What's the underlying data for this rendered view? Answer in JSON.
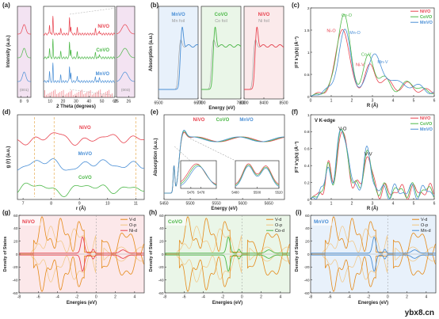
{
  "colors": {
    "ni": "#e8434f",
    "co": "#4cb848",
    "mn": "#4a8fd6",
    "dark": "#222222",
    "grey": "#888888",
    "vd": "#e58a19",
    "op": "#f2c580"
  },
  "watermark": "ybx8.cn",
  "chart_data": [
    {
      "panel": "a",
      "type": "line",
      "panel_label": "(a)",
      "xlabel": "2 Theta (degrees)",
      "ylabel": "Intensity (a.u.)",
      "series": [
        {
          "name": "NiVO",
          "color": "#e8434f",
          "peaks": [
            [
              9.6,
              0.5
            ],
            [
              12.2,
              0.9
            ],
            [
              18.2,
              0.3
            ],
            [
              25.0,
              0.8
            ],
            [
              26.0,
              0.4
            ],
            [
              31.0,
              0.3
            ],
            [
              45.0,
              0.25
            ],
            [
              48.0,
              0.2
            ]
          ]
        },
        {
          "name": "CoVO",
          "color": "#4cb848",
          "peaks": [
            [
              9.6,
              0.5
            ],
            [
              12.2,
              0.9
            ],
            [
              18.2,
              0.3
            ],
            [
              25.0,
              0.8
            ],
            [
              26.0,
              0.4
            ],
            [
              31.0,
              0.3
            ],
            [
              45.0,
              0.25
            ],
            [
              48.0,
              0.2
            ]
          ]
        },
        {
          "name": "MnVO",
          "color": "#4a8fd6",
          "peaks": [
            [
              9.6,
              0.5
            ],
            [
              12.2,
              0.9
            ],
            [
              18.2,
              0.3
            ],
            [
              25.0,
              0.8
            ],
            [
              26.0,
              0.4
            ],
            [
              31.0,
              0.3
            ],
            [
              45.0,
              0.25
            ],
            [
              48.0,
              0.2
            ]
          ]
        }
      ],
      "subplots": [
        {
          "xlim": [
            7.5,
            9.5
          ],
          "ticks": [
            8,
            9
          ],
          "note": "(001)"
        },
        {
          "xlim": [
            5,
            60
          ],
          "ticks": [
            10,
            20,
            30,
            40,
            50,
            60
          ]
        },
        {
          "xlim": [
            25,
            26.5
          ],
          "ticks": [
            25,
            26
          ],
          "note": "(003)"
        }
      ]
    },
    {
      "panel": "b",
      "type": "line",
      "panel_label": "(b)",
      "xlabel": "Energy (eV)",
      "ylabel": "Absorption (a.u.)",
      "subplots": [
        {
          "name": "MnVO",
          "ref": "Mn foil",
          "xlim": [
            6500,
            6600
          ],
          "ticks": [
            6500,
            6600
          ],
          "edge": 6550,
          "color": "#4a8fd6"
        },
        {
          "name": "CoVO",
          "ref": "Co foil",
          "xlim": [
            7700,
            7800
          ],
          "ticks": [
            7700,
            7800
          ],
          "edge": 7725,
          "color": "#4cb848"
        },
        {
          "name": "NiVO",
          "ref": "Ni foil",
          "xlim": [
            8300,
            8500
          ],
          "ticks": [
            8300,
            8400,
            8500
          ],
          "edge": 8345,
          "color": "#e8434f"
        }
      ]
    },
    {
      "panel": "c",
      "type": "line",
      "panel_label": "(c)",
      "xlabel": "R (Å)",
      "ylabel": "|FT k³χ(k)| (Å⁻³)",
      "xlim": [
        0,
        6
      ],
      "ylim": [
        0,
        2.0
      ],
      "xticks": [
        0,
        1,
        2,
        3,
        4,
        5,
        6
      ],
      "yticks": [
        0.0,
        0.5,
        1.0,
        1.5,
        2.0
      ],
      "annotations": [
        "Co-O",
        "Ni-O",
        "Mn-O",
        "Co-V",
        "Ni-V",
        "Mn-V"
      ],
      "series": [
        {
          "name": "NiVO",
          "color": "#e8434f",
          "peaks": [
            [
              1.55,
              1.45,
              0.3
            ],
            [
              2.85,
              0.55,
              0.25
            ],
            [
              3.6,
              0.25,
              0.3
            ],
            [
              4.7,
              0.15,
              0.3
            ]
          ]
        },
        {
          "name": "CoVO",
          "color": "#4cb848",
          "peaks": [
            [
              1.6,
              1.75,
              0.3
            ],
            [
              2.8,
              0.75,
              0.25
            ],
            [
              3.5,
              0.3,
              0.3
            ],
            [
              4.8,
              0.2,
              0.3
            ]
          ]
        },
        {
          "name": "MnVO",
          "color": "#4a8fd6",
          "peaks": [
            [
              1.65,
              1.35,
              0.3
            ],
            [
              3.1,
              0.9,
              0.28
            ],
            [
              4.0,
              0.3,
              0.3
            ],
            [
              5.0,
              0.15,
              0.3
            ]
          ]
        }
      ]
    },
    {
      "panel": "d",
      "type": "line",
      "panel_label": "(d)",
      "xlabel": "r (Å)",
      "ylabel": "g (r) (a.u.)",
      "xlim": [
        6.8,
        11.3
      ],
      "xticks": [
        7,
        8,
        9,
        10,
        11
      ],
      "series": [
        {
          "name": "NiVO",
          "color": "#e8434f"
        },
        {
          "name": "MnVO",
          "color": "#4a8fd6"
        },
        {
          "name": "CoVO",
          "color": "#4cb848"
        }
      ]
    },
    {
      "panel": "e",
      "type": "line",
      "panel_label": "(e)",
      "xlabel": "Energy (eV)",
      "ylabel": "Absorption (a.u.)",
      "xlim": [
        5450,
        5680
      ],
      "xticks": [
        5450,
        5500,
        5550,
        5600,
        5650
      ],
      "series": [
        {
          "name": "NiVO",
          "color": "#e8434f"
        },
        {
          "name": "CoVO",
          "color": "#4cb848"
        },
        {
          "name": "MnVO",
          "color": "#4a8fd6"
        }
      ],
      "insets": [
        {
          "xlim": [
            5474,
            5481
          ],
          "ticks": [
            5476,
            5478
          ]
        },
        {
          "xlim": [
            5480,
            5520
          ],
          "ticks": [
            5480,
            5500,
            5520
          ]
        }
      ]
    },
    {
      "panel": "f",
      "type": "line",
      "panel_label": "(f)",
      "title": "V K-edge",
      "xlabel": "R (Å)",
      "ylabel": "|FT k³χ(k)| (Å⁻³)",
      "xlim": [
        0,
        6
      ],
      "ylim": [
        0,
        1.0
      ],
      "xticks": [
        0,
        1,
        2,
        3,
        4,
        5,
        6
      ],
      "yticks": [
        0.0,
        0.2,
        0.4,
        0.6,
        0.8,
        1.0
      ],
      "annotations": [
        "V-O",
        "V-V"
      ],
      "series": [
        {
          "name": "NiVO",
          "color": "#e8434f"
        },
        {
          "name": "CoVO",
          "color": "#4cb848"
        },
        {
          "name": "MnVO",
          "color": "#4a8fd6"
        }
      ]
    },
    {
      "panel": "g",
      "type": "area",
      "panel_label": "(g)",
      "tag": "NiVO",
      "xlabel": "Energies (eV)",
      "ylabel": "Density of States",
      "xlim": [
        -8,
        5
      ],
      "ylim": [
        -60,
        60
      ],
      "xticks": [
        -8,
        -6,
        -4,
        -2,
        0,
        2,
        4
      ],
      "yticks": [
        -60,
        -40,
        -20,
        0,
        20,
        40,
        60
      ],
      "legend": [
        "V-d",
        "O-p",
        "Ni-d"
      ],
      "metal_color": "#e8434f"
    },
    {
      "panel": "h",
      "type": "area",
      "panel_label": "(h)",
      "tag": "CoVO",
      "xlabel": "Energies (eV)",
      "ylabel": "Density of States",
      "xlim": [
        -8,
        5
      ],
      "ylim": [
        -60,
        60
      ],
      "xticks": [
        -8,
        -6,
        -4,
        -2,
        0,
        2,
        4
      ],
      "yticks": [
        -60,
        -40,
        -20,
        0,
        20,
        40,
        60
      ],
      "legend": [
        "V-d",
        "O-p",
        "Co-d"
      ],
      "metal_color": "#4cb848"
    },
    {
      "panel": "i",
      "type": "area",
      "panel_label": "(i)",
      "tag": "MnVO",
      "xlabel": "Energies (eV)",
      "ylabel": "Density of States",
      "xlim": [
        -8,
        5
      ],
      "ylim": [
        -60,
        60
      ],
      "xticks": [
        -8,
        -6,
        -4,
        -2,
        0,
        2,
        4
      ],
      "yticks": [
        -60,
        -40,
        -20,
        0,
        20,
        40,
        60
      ],
      "legend": [
        "V-d",
        "O-p",
        "Mn-d"
      ],
      "metal_color": "#4a8fd6"
    }
  ]
}
